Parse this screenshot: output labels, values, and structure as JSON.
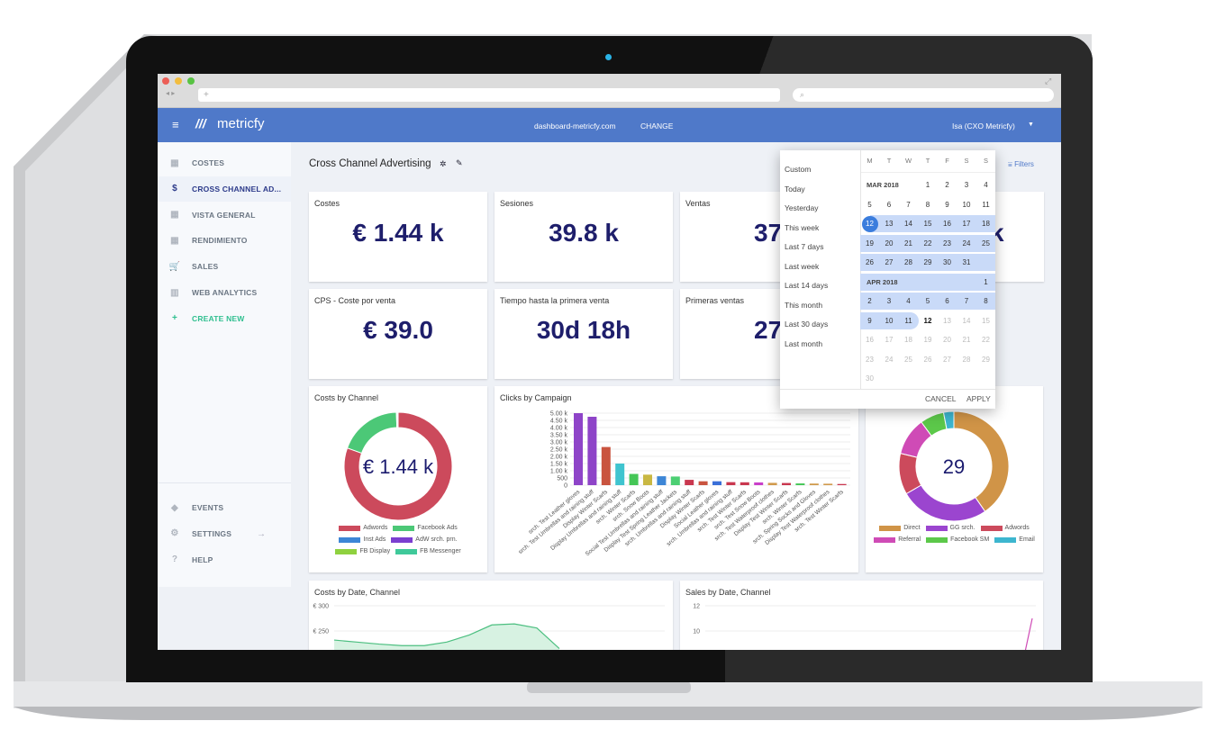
{
  "browser": {
    "new_tab": "+",
    "colors": {
      "close": "#ec5f57",
      "min": "#f2bd3f",
      "max": "#58c343"
    }
  },
  "appbar": {
    "logo": "metricfy",
    "domain": "dashboard-metricfy.com",
    "change": "CHANGE",
    "user": "Isa (CXO Metricfy)",
    "brand_color": "#4f79c9"
  },
  "sidebar": {
    "items": [
      {
        "label": "COSTES",
        "icon": "grid-icon"
      },
      {
        "label": "CROSS CHANNEL AD...",
        "icon": "dollar-icon",
        "active": true
      },
      {
        "label": "VISTA GENERAL",
        "icon": "grid-icon"
      },
      {
        "label": "RENDIMIENTO",
        "icon": "grid-icon"
      },
      {
        "label": "SALES",
        "icon": "cart-icon"
      },
      {
        "label": "WEB ANALYTICS",
        "icon": "chart-icon"
      },
      {
        "label": "CREATE NEW",
        "icon": "plus-icon"
      }
    ],
    "bottom": [
      {
        "label": "EVENTS",
        "icon": "tag-icon"
      },
      {
        "label": "SETTINGS",
        "icon": "gear-icon"
      },
      {
        "label": "HELP",
        "icon": "help-icon"
      }
    ]
  },
  "page": {
    "title": "Cross Channel Advertising",
    "filters": "Filters"
  },
  "kpis": [
    {
      "label": "Costes",
      "value": "€ 1.44 k"
    },
    {
      "label": "Sesiones",
      "value": "39.8 k"
    },
    {
      "label": "Ventas",
      "value": "37"
    },
    {
      "label": "",
      "value": "k"
    },
    {
      "label": "CPS - Coste por venta",
      "value": "€ 39.0"
    },
    {
      "label": "Tiempo hasta la primera venta",
      "value": "30d 18h"
    },
    {
      "label": "Primeras ventas",
      "value": "27"
    }
  ],
  "datepicker": {
    "presets": [
      "Custom",
      "Today",
      "Yesterday",
      "This week",
      "Last 7 days",
      "Last week",
      "Last 14 days",
      "This month",
      "Last 30 days",
      "Last month"
    ],
    "weekdays": [
      "M",
      "T",
      "W",
      "T",
      "F",
      "S",
      "S"
    ],
    "rows": [
      {
        "month": "MAR 2018",
        "days": [
          "",
          "",
          "",
          "1",
          "2",
          "3",
          "4"
        ]
      },
      {
        "days": [
          "5",
          "6",
          "7",
          "8",
          "9",
          "10",
          "11"
        ]
      },
      {
        "days": [
          "12",
          "13",
          "14",
          "15",
          "16",
          "17",
          "18"
        ]
      },
      {
        "days": [
          "19",
          "20",
          "21",
          "22",
          "23",
          "24",
          "25"
        ]
      },
      {
        "days": [
          "26",
          "27",
          "28",
          "29",
          "30",
          "31",
          ""
        ]
      },
      {
        "month": "APR 2018",
        "days": [
          "",
          "",
          "",
          "",
          "",
          "",
          "1"
        ]
      },
      {
        "days": [
          "2",
          "3",
          "4",
          "5",
          "6",
          "7",
          "8"
        ]
      },
      {
        "days": [
          "9",
          "10",
          "11",
          "12",
          "13",
          "14",
          "15"
        ]
      },
      {
        "days": [
          "16",
          "17",
          "18",
          "19",
          "20",
          "21",
          "22"
        ]
      },
      {
        "days": [
          "23",
          "24",
          "25",
          "26",
          "27",
          "28",
          "29"
        ]
      },
      {
        "days": [
          "30",
          "",
          "",
          "",
          "",
          "",
          ""
        ]
      }
    ],
    "range_start": "MAR 12 2018",
    "range_end": "APR 11 2018",
    "today": "APR 12 2018",
    "cancel": "CANCEL",
    "apply": "APPLY"
  },
  "chart_data": [
    {
      "type": "pie",
      "title": "Costs by Channel",
      "center_label": "€ 1.44 k",
      "labels": [
        "Adwords",
        "Facebook Ads",
        "Inst Ads",
        "AdW srch. prn.",
        "FB Display",
        "FB Messenger"
      ],
      "values": [
        80.5,
        19,
        0.2,
        0.1,
        0.1,
        0.1
      ],
      "colors": [
        "#cc4a5c",
        "#4cc877",
        "#3d86d6",
        "#7b3fd0",
        "#8fd13f",
        "#3fc99a"
      ]
    },
    {
      "type": "bar",
      "title": "Clicks by Campaign",
      "ylim": [
        0,
        5000
      ],
      "yticks": [
        "0",
        "500",
        "1.00 k",
        "1.50 k",
        "2.00 k",
        "2.50 k",
        "3.00 k",
        "3.50 k",
        "4.00 k",
        "4.50 k",
        "5.00 k"
      ],
      "categories": [
        "srch. Test Leather gloves",
        "srch. Test Umbrellas and raining stuff",
        "Display Winter Scarfs",
        "Display Umbrellas and raining stuff",
        "srch. Winter Scarfs",
        "srch. Snow Boots",
        "Social Test Umbrellas and raining stuff",
        "Display Test Spring Leather Jackets",
        "srch. Umbrellas and raining stuff",
        "Display Winter Scarfs",
        "Social Leather gloves",
        "srch. Umbrellas and raining stuff",
        "srch. Test Winter Scarfs",
        "srch. Test Snow Boots",
        "srch. Test Waterproof clothes",
        "Display Test Winter Scarfs",
        "srch. Winter Scarfs",
        "srch. Spring Socks and Gloves",
        "Display Test Waterproof clothes",
        "srch. Test Winter Scarfs"
      ],
      "values": [
        5000,
        4750,
        2650,
        1500,
        780,
        730,
        620,
        600,
        370,
        270,
        270,
        210,
        200,
        190,
        160,
        150,
        120,
        110,
        100,
        80
      ],
      "colors": [
        "#8e44c8",
        "#8e44c8",
        "#c9543f",
        "#3fc4cf",
        "#44c656",
        "#c9b843",
        "#3d86d6",
        "#4ccf73",
        "#c9374f",
        "#c9543f",
        "#3a6fd8",
        "#c9374f",
        "#c9374f",
        "#c93fc9",
        "#d09a4c",
        "#c9374f",
        "#44c656",
        "#d09a4c",
        "#d09a4c",
        "#c9374f"
      ]
    },
    {
      "type": "pie",
      "title": "",
      "center_label": "29",
      "labels": [
        "Direct",
        "GG srch.",
        "Adwords",
        "Referral",
        "Facebook SM",
        "Email"
      ],
      "values": [
        40,
        26,
        12,
        11,
        7,
        3
      ],
      "colors": [
        "#d09447",
        "#9b45cf",
        "#cc4a5c",
        "#cf4bb6",
        "#5cc84a",
        "#3db6cf"
      ]
    },
    {
      "type": "area",
      "title": "Costs by Date, Channel",
      "yticks": [
        "€ 300",
        "€ 250"
      ],
      "values": [
        232,
        228,
        224,
        221,
        221,
        228,
        242,
        262,
        264,
        256,
        215
      ],
      "color": "#4cbf80"
    },
    {
      "type": "line",
      "title": "Sales by Date, Channel",
      "yticks": [
        "12",
        "10"
      ],
      "values": [
        0,
        0,
        0,
        0,
        0,
        0,
        0,
        0,
        0,
        0,
        0,
        11
      ],
      "color": "#cf4bb6"
    }
  ]
}
